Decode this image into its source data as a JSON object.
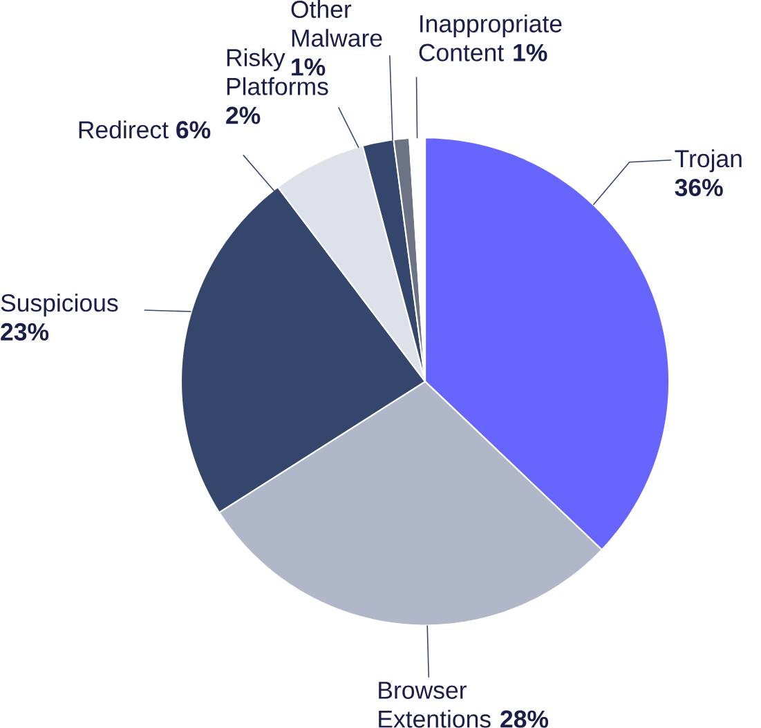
{
  "chart_data": {
    "type": "pie",
    "categories": [
      "Trojan",
      "Browser Extentions",
      "Suspicious",
      "Redirect",
      "Risky Platforms",
      "Other Malware",
      "Inappropriate Content"
    ],
    "values": [
      36,
      28,
      23,
      6,
      2,
      1,
      1
    ],
    "value_labels": [
      "36%",
      "28%",
      "23%",
      "6%",
      "2%",
      "1%",
      "1%"
    ],
    "colors": [
      "#6666ff",
      "#b0b7c8",
      "#35466d",
      "#dde1ea",
      "#35466d",
      "#6b7385",
      "#ffffff"
    ]
  }
}
